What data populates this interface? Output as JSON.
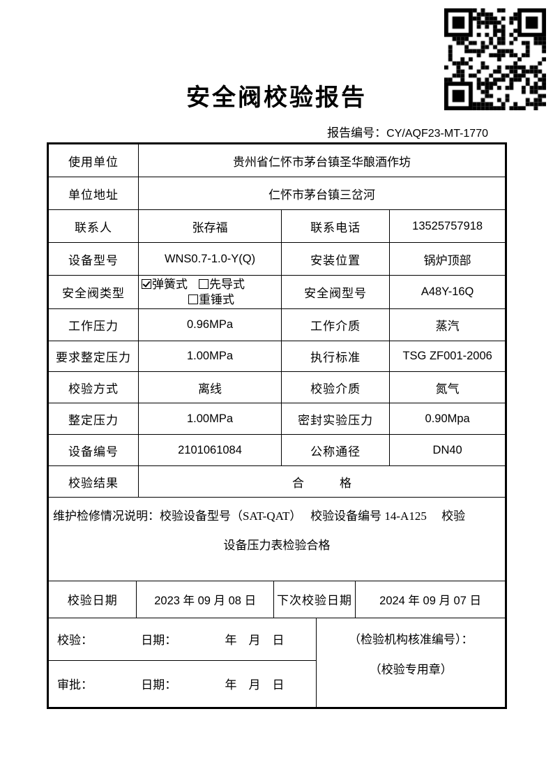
{
  "page": {
    "title": "安全阀校验报告",
    "report_no_label": "报告编号：",
    "report_no_value": "CY/AQF23-MT-1770"
  },
  "form": {
    "company": {
      "label": "使用单位",
      "value": "贵州省仁怀市茅台镇圣华酿酒作坊"
    },
    "address": {
      "label": "单位地址",
      "value": "仁怀市茅台镇三岔河"
    },
    "contact": {
      "label": "联系人",
      "value": "张存福",
      "label2": "联系电话",
      "value2": "13525757918"
    },
    "device": {
      "label": "设备型号",
      "value": "WNS0.7-1.0-Y(Q)",
      "label2": "安装位置",
      "value2": "锅炉顶部"
    },
    "valve_type": {
      "label": "安全阀类型",
      "options": [
        {
          "label": "弹簧式",
          "checked": true
        },
        {
          "label": "先导式",
          "checked": false
        },
        {
          "label": "重锤式",
          "checked": false
        }
      ],
      "label2": "安全阀型号",
      "value2": "A48Y-16Q"
    },
    "work_pressure": {
      "label": "工作压力",
      "value": "0.96MPa",
      "label2": "工作介质",
      "value2": "蒸汽"
    },
    "req_pressure": {
      "label": "要求整定压力",
      "value": "1.00MPa",
      "label2": "执行标准",
      "value2": "TSG ZF001-2006"
    },
    "method": {
      "label": "校验方式",
      "value": "离线",
      "label2": "校验介质",
      "value2": "氮气"
    },
    "set_pressure": {
      "label": "整定压力",
      "value": "1.00MPa",
      "label2": "密封实验压力",
      "value2": "0.90Mpa"
    },
    "device_no": {
      "label": "设备编号",
      "value": "2101061084",
      "label2": "公称通径",
      "value2": "DN40"
    },
    "result": {
      "label": "校验结果",
      "value": "合　　　格"
    },
    "note": {
      "line1": "维护检修情况说明：校验设备型号（SAT-QAT）　 校验设备编号 14-A125　 校验",
      "line2": "设备压力表检验合格"
    },
    "dates": {
      "label": "校验日期",
      "value": "2023 年 09 月 08 日",
      "label2": "下次校验日期",
      "value2": "2024 年 09 月 07 日"
    },
    "sign": {
      "row1_label": "校验：",
      "row1_date": "日期：",
      "row1_ymd": "年　月　日",
      "row2_label": "审批：",
      "row2_date": "日期：",
      "row2_ymd": "年　月　日",
      "org_line1": "（检验机构核准编号）：",
      "org_line2": "（校验专用章）"
    }
  },
  "colors": {
    "border": "#000000",
    "text": "#000000",
    "background": "#ffffff"
  }
}
